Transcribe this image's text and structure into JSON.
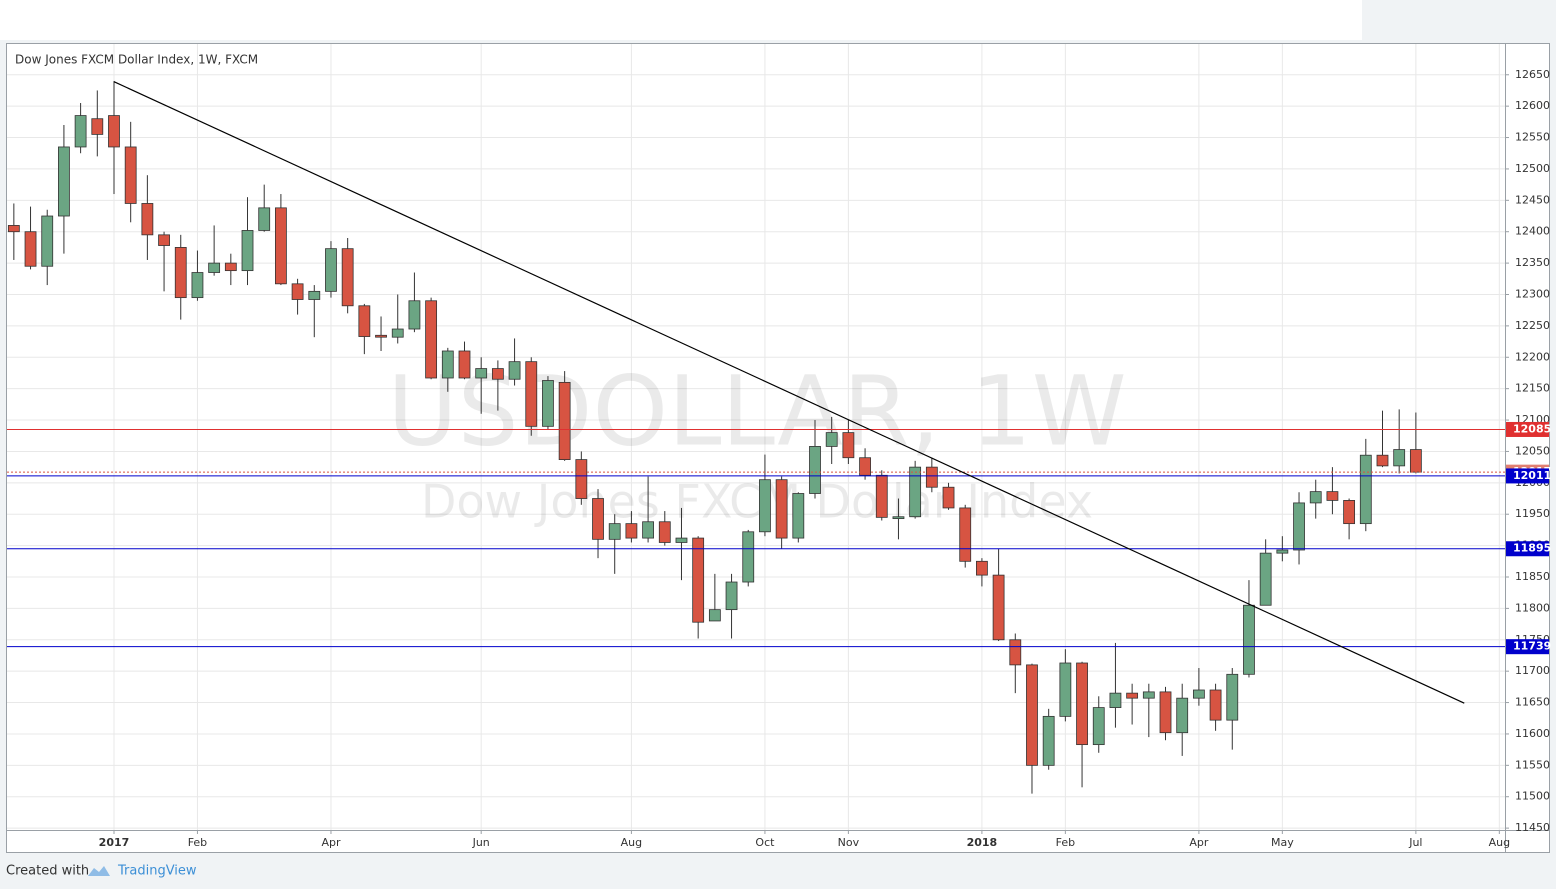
{
  "chart_data": {
    "type": "candlestick",
    "title": "Dow Jones FXCM Dollar Index, 1W, FXCM",
    "watermark": "USDOLLAR, 1W",
    "watermark_subtitle": "Dow Jones FXCM Dollar Index",
    "footer": {
      "prefix": "Created with",
      "brand": "TradingView"
    },
    "up_color": "#6ba583",
    "down_color": "#d75442",
    "grid": true,
    "xlim": [
      -6.41,
      83.34
    ],
    "xticks": [
      {
        "value": 0,
        "label": "2017"
      },
      {
        "value": 5,
        "label": "Feb"
      },
      {
        "value": 13,
        "label": "Apr"
      },
      {
        "value": 22,
        "label": "Jun"
      },
      {
        "value": 31,
        "label": "Aug"
      },
      {
        "value": 39,
        "label": "Oct"
      },
      {
        "value": 44,
        "label": "Nov"
      },
      {
        "value": 52,
        "label": "2018"
      },
      {
        "value": 57,
        "label": "Feb"
      },
      {
        "value": 65,
        "label": "Apr"
      },
      {
        "value": 70,
        "label": "May"
      },
      {
        "value": 78,
        "label": "Jul"
      },
      {
        "value": 83,
        "label": "Aug"
      }
    ],
    "ylim": [
      11447,
      12699
    ],
    "yticks": [
      11450,
      11500,
      11550,
      11600,
      11650,
      11700,
      11750,
      11800,
      11850,
      11900,
      11950,
      12000,
      12050,
      12100,
      12150,
      12200,
      12250,
      12300,
      12350,
      12400,
      12450,
      12500,
      12550,
      12600,
      12650
    ],
    "x": [
      -6,
      -5,
      -4,
      -3,
      -2,
      -1,
      0,
      1,
      2,
      3,
      4,
      5,
      6,
      7,
      8,
      9,
      10,
      11,
      12,
      13,
      14,
      15,
      16,
      17,
      18,
      19,
      20,
      21,
      22,
      23,
      24,
      25,
      26,
      27,
      28,
      29,
      30,
      31,
      32,
      33,
      34,
      35,
      36,
      37,
      38,
      39,
      40,
      41,
      42,
      43,
      44,
      45,
      46,
      47,
      48,
      49,
      50,
      51,
      52,
      53,
      54,
      55,
      56,
      57,
      58,
      59,
      60,
      61,
      62,
      63,
      64,
      65,
      66,
      67,
      68,
      69,
      70,
      71,
      72,
      73,
      74,
      75,
      76,
      77,
      78
    ],
    "open": [
      12410,
      12400,
      12345,
      12425,
      12535,
      12580,
      12585,
      12535,
      12445,
      12395,
      12375,
      12295,
      12335,
      12350,
      12338,
      12402,
      12438,
      12317,
      12292,
      12305,
      12373,
      12282,
      12235,
      12232,
      12245,
      12290,
      12167,
      12210,
      12167,
      12182,
      12165,
      12193,
      12090,
      12160,
      12037,
      11975,
      11910,
      11935,
      11912,
      11938,
      11905,
      11912,
      11780,
      11798,
      11842,
      11922,
      12005,
      11912,
      11983,
      12058,
      12080,
      12040,
      12012,
      11943,
      11946,
      12025,
      11993,
      11960,
      11875,
      11853,
      11750,
      11710,
      11550,
      11628,
      11713,
      11583,
      11642,
      11665,
      11657,
      11667,
      11602,
      11657,
      11670,
      11622,
      11695,
      11805,
      11888,
      11893,
      11968,
      11986,
      11972,
      11935,
      12044,
      12027,
      12053
    ],
    "close": [
      12400,
      12345,
      12425,
      12535,
      12585,
      12555,
      12535,
      12445,
      12395,
      12378,
      12295,
      12335,
      12350,
      12338,
      12402,
      12438,
      12317,
      12292,
      12305,
      12373,
      12282,
      12233,
      12232,
      12245,
      12290,
      12167,
      12210,
      12167,
      12182,
      12165,
      12193,
      12090,
      12163,
      12037,
      11975,
      11910,
      11935,
      11912,
      11938,
      11905,
      11912,
      11778,
      11798,
      11842,
      11922,
      12005,
      11912,
      11983,
      12058,
      12080,
      12040,
      12012,
      11945,
      11946,
      12025,
      11993,
      11960,
      11875,
      11853,
      11750,
      11710,
      11550,
      11628,
      11713,
      11583,
      11642,
      11665,
      11657,
      11667,
      11602,
      11657,
      11670,
      11622,
      11695,
      11805,
      11888,
      11893,
      11968,
      11986,
      11972,
      11935,
      12044,
      12027,
      12053,
      12017
    ],
    "high": [
      12445,
      12440,
      12435,
      12570,
      12605,
      12625,
      12640,
      12575,
      12490,
      12400,
      12395,
      12370,
      12410,
      12365,
      12455,
      12475,
      12460,
      12325,
      12315,
      12385,
      12390,
      12285,
      12265,
      12300,
      12335,
      12295,
      12215,
      12225,
      12200,
      12195,
      12230,
      12200,
      12170,
      12178,
      12050,
      11990,
      11950,
      11955,
      12010,
      11955,
      11960,
      11915,
      11855,
      11855,
      11925,
      12045,
      12010,
      11985,
      12100,
      12105,
      12100,
      12055,
      12020,
      11975,
      12035,
      12040,
      12000,
      11965,
      11880,
      11895,
      11760,
      11712,
      11640,
      11735,
      11715,
      11660,
      11745,
      11680,
      11680,
      11675,
      11680,
      11705,
      11680,
      11705,
      11845,
      11910,
      11915,
      11985,
      12005,
      12025,
      11975,
      12070,
      12115,
      12117,
      12112
    ],
    "low": [
      12355,
      12340,
      12315,
      12365,
      12525,
      12520,
      12460,
      12415,
      12355,
      12305,
      12260,
      12290,
      12330,
      12315,
      12315,
      12400,
      12315,
      12268,
      12232,
      12295,
      12270,
      12205,
      12210,
      12222,
      12240,
      12165,
      12145,
      12165,
      12110,
      12115,
      12155,
      12075,
      12085,
      12035,
      11965,
      11880,
      11855,
      11905,
      11905,
      11900,
      11845,
      11752,
      11780,
      11752,
      11835,
      11915,
      11895,
      11905,
      11975,
      12030,
      12030,
      12005,
      11940,
      11910,
      11943,
      11985,
      11957,
      11865,
      11835,
      11748,
      11665,
      11505,
      11543,
      11620,
      11515,
      11570,
      11610,
      11615,
      11595,
      11590,
      11565,
      11645,
      11605,
      11575,
      11690,
      11805,
      11875,
      11870,
      11943,
      11950,
      11910,
      11923,
      12025,
      12015,
      12015
    ],
    "trendline": {
      "x": [
        0,
        80.9
      ],
      "y": [
        12639,
        11649
      ],
      "color": "#000000"
    },
    "levels": [
      {
        "value": 12085,
        "color": "#e03030",
        "style": "solid"
      },
      {
        "value": 12017,
        "color": "#d75442",
        "style": "dotted"
      },
      {
        "value": 12011,
        "color": "#0000cc",
        "style": "solid"
      },
      {
        "value": 11895,
        "color": "#0000cc",
        "style": "solid"
      },
      {
        "value": 11739,
        "color": "#0000cc",
        "style": "solid"
      }
    ]
  }
}
